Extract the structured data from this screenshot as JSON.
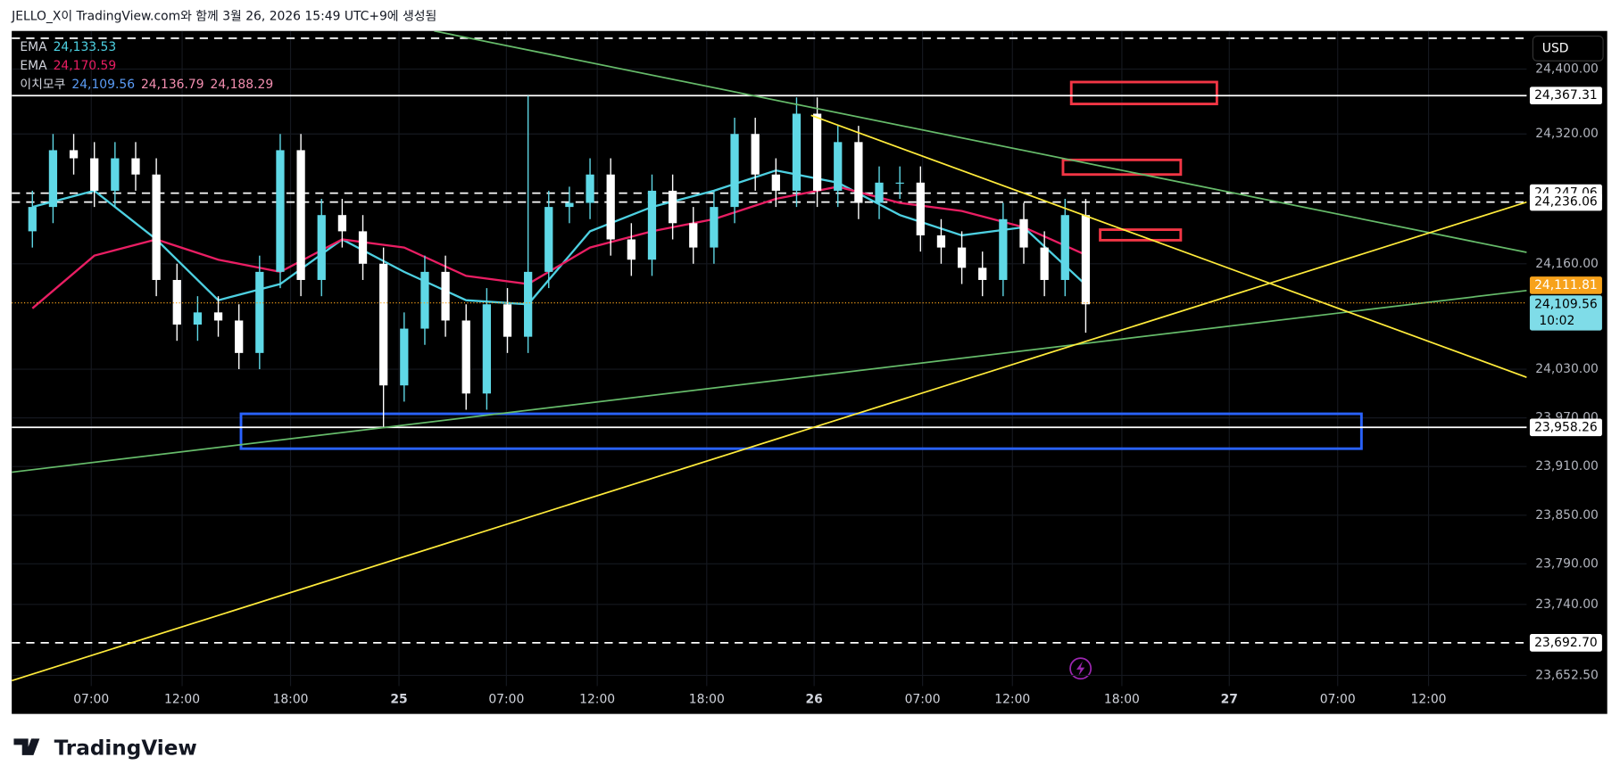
{
  "header": {
    "text": "JELLO_X이 TradingView.com와 함께 3월 26, 2026 15:49 UTC+9에 생성됨"
  },
  "chart_data": {
    "type": "candlestick",
    "x": [
      1,
      2,
      3,
      4,
      5,
      6,
      7,
      8,
      9,
      10,
      11,
      12,
      13,
      14,
      15,
      16,
      17,
      18,
      19,
      20,
      21,
      22,
      23,
      24,
      25,
      26,
      27,
      28,
      29,
      30,
      31,
      32,
      33,
      34,
      35,
      36,
      37,
      38,
      39,
      40,
      41,
      42,
      43,
      44,
      45,
      46,
      47,
      48,
      49,
      50,
      51,
      52
    ],
    "open": [
      24200,
      24230,
      24300,
      24290,
      24250,
      24290,
      24270,
      24140,
      24085,
      24100,
      24090,
      24050,
      24150,
      24300,
      24140,
      24220,
      24200,
      24160,
      24010,
      24080,
      24150,
      24090,
      24000,
      24110,
      24070,
      24150,
      24230,
      24235,
      24270,
      24190,
      24165,
      24250,
      24210,
      24180,
      24230,
      24320,
      24270,
      24250,
      24345,
      24250,
      24310,
      24235,
      24260,
      24260,
      24195,
      24180,
      24155,
      24140,
      24215,
      24180,
      24140,
      24220
    ],
    "high": [
      24250,
      24320,
      24320,
      24310,
      24310,
      24310,
      24290,
      24160,
      24120,
      24120,
      24110,
      24170,
      24320,
      24320,
      24240,
      24240,
      24220,
      24180,
      24100,
      24170,
      24170,
      24110,
      24130,
      24130,
      24367,
      24250,
      24255,
      24290,
      24290,
      24210,
      24270,
      24270,
      24230,
      24250,
      24340,
      24340,
      24290,
      24365,
      24365,
      24330,
      24330,
      24280,
      24280,
      24280,
      24215,
      24200,
      24175,
      24235,
      24235,
      24200,
      24240,
      24240
    ],
    "low": [
      24180,
      24210,
      24270,
      24230,
      24230,
      24250,
      24120,
      24065,
      24065,
      24070,
      24030,
      24030,
      24130,
      24120,
      24120,
      24180,
      24140,
      23958,
      23990,
      24060,
      24070,
      23980,
      23980,
      24050,
      24050,
      24130,
      24210,
      24215,
      24170,
      24145,
      24145,
      24190,
      24160,
      24160,
      24210,
      24250,
      24230,
      24230,
      24230,
      24230,
      24215,
      24215,
      24240,
      24175,
      24160,
      24135,
      24120,
      24120,
      24160,
      24120,
      24120,
      24075
    ],
    "close": [
      24230,
      24300,
      24290,
      24250,
      24290,
      24270,
      24140,
      24085,
      24100,
      24090,
      24050,
      24150,
      24300,
      24140,
      24220,
      24200,
      24160,
      24010,
      24080,
      24150,
      24090,
      24000,
      24110,
      24070,
      24150,
      24230,
      24235,
      24270,
      24190,
      24165,
      24250,
      24210,
      24180,
      24230,
      24320,
      24270,
      24250,
      24345,
      24250,
      24310,
      24235,
      24260,
      24260,
      24195,
      24180,
      24155,
      24140,
      24215,
      24180,
      24140,
      24220,
      24110
    ],
    "up_color": "#5fd8e6",
    "down_color": "#ffffff",
    "xlim": [
      0,
      73.35
    ],
    "xticks": [
      {
        "value": 3.85,
        "label": "07:00"
      },
      {
        "value": 8.25,
        "label": "12:00"
      },
      {
        "value": 13.5,
        "label": "18:00"
      },
      {
        "value": 18.75,
        "label": "25"
      },
      {
        "value": 23.95,
        "label": "07:00"
      },
      {
        "value": 28.35,
        "label": "12:00"
      },
      {
        "value": 33.65,
        "label": "18:00"
      },
      {
        "value": 38.85,
        "label": "26"
      },
      {
        "value": 44.1,
        "label": "07:00"
      },
      {
        "value": 48.45,
        "label": "12:00"
      },
      {
        "value": 53.75,
        "label": "18:00"
      },
      {
        "value": 58.95,
        "label": "27"
      },
      {
        "value": 64.2,
        "label": "07:00"
      },
      {
        "value": 68.6,
        "label": "12:00"
      }
    ],
    "ylim": [
      23605,
      24447
    ],
    "yticks": [
      {
        "value": 24400,
        "label": "24,400.00"
      },
      {
        "value": 24320,
        "label": "24,320.00"
      },
      {
        "value": 24160,
        "label": "24,160.00"
      },
      {
        "value": 24030,
        "label": "24,030.00"
      },
      {
        "value": 23970,
        "label": "23,970.00"
      },
      {
        "value": 23910,
        "label": "23,910.00"
      },
      {
        "value": 23850,
        "label": "23,850.00"
      },
      {
        "value": 23790,
        "label": "23,790.00"
      },
      {
        "value": 23740,
        "label": "23,740.00"
      },
      {
        "value": 23652.5,
        "label": "23,652.50"
      }
    ],
    "grid": true,
    "series": [
      {
        "name": "EMA",
        "color": "#4dd0e1",
        "x": [
          1,
          4,
          7,
          10,
          13,
          16,
          19,
          22,
          25,
          28,
          31,
          34,
          37,
          40,
          43,
          46,
          49,
          52
        ],
        "values": [
          24230,
          24250,
          24190,
          24115,
          24135,
          24190,
          24150,
          24115,
          24110,
          24200,
          24230,
          24250,
          24275,
          24260,
          24220,
          24195,
          24205,
          24134
        ]
      },
      {
        "name": "EMA",
        "color": "#e91e63",
        "x": [
          1,
          4,
          7,
          10,
          13,
          16,
          19,
          22,
          25,
          28,
          31,
          34,
          37,
          40,
          43,
          46,
          49,
          52
        ],
        "values": [
          24105,
          24170,
          24190,
          24165,
          24150,
          24190,
          24180,
          24145,
          24135,
          24180,
          24200,
          24215,
          24240,
          24255,
          24235,
          24225,
          24205,
          24171
        ]
      }
    ],
    "legend": [
      {
        "name": "EMA",
        "values": [
          "24,133.53"
        ],
        "colors": [
          "#4dd0e1"
        ]
      },
      {
        "name": "EMA",
        "values": [
          "24,170.59"
        ],
        "colors": [
          "#e91e63"
        ]
      },
      {
        "name": "이치모쿠",
        "values": [
          "24,109.56",
          "24,136.79",
          "24,188.29"
        ],
        "colors": [
          "#5b9cf6",
          "#f48fb1",
          "#f48fb1"
        ]
      }
    ],
    "price_lines": [
      {
        "value": 24438,
        "label": null,
        "style": "dashed"
      },
      {
        "value": 24367.31,
        "label": "24,367.31",
        "style": "solid"
      },
      {
        "value": 24247.06,
        "label": "24,247.06",
        "style": "dashed"
      },
      {
        "value": 24236.06,
        "label": "24,236.06",
        "style": "dashed"
      },
      {
        "value": 23958.26,
        "label": "23,958.26",
        "style": "solid"
      },
      {
        "value": 23692.7,
        "label": "23,692.70",
        "style": "dashed"
      }
    ],
    "current_price": {
      "value": 24111.81,
      "label": "24,111.81",
      "color": "#f7a21b"
    },
    "last_price": {
      "value": 24109.56,
      "label": "24,109.56",
      "countdown": "10:02",
      "color": "#7fdce8"
    },
    "trend_lines": [
      {
        "color": "#66bb6a",
        "x": [
          20.45,
          73.35
        ],
        "y": [
          24447,
          24174
        ]
      },
      {
        "color": "#66bb6a",
        "x": [
          0,
          73.35
        ],
        "y": [
          23903,
          24127
        ]
      },
      {
        "color": "#ffeb3b",
        "x": [
          0,
          73.35
        ],
        "y": [
          23646,
          24236
        ]
      },
      {
        "color": "#ffeb3b",
        "x": [
          38.7,
          73.35
        ],
        "y": [
          24343,
          24020
        ]
      }
    ],
    "zones": [
      {
        "color": "#f23645",
        "x": [
          51.3,
          58.35
        ],
        "y": [
          24384,
          24357
        ]
      },
      {
        "color": "#f23645",
        "x": [
          50.9,
          56.6
        ],
        "y": [
          24288,
          24270
        ]
      },
      {
        "color": "#f23645",
        "x": [
          52.7,
          56.6
        ],
        "y": [
          24202,
          24189
        ]
      },
      {
        "color": "#2962ff",
        "x": [
          11.1,
          65.35
        ],
        "y": [
          23975,
          23932
        ]
      }
    ],
    "currency": "USD"
  },
  "footer": {
    "brand": "TradingView"
  }
}
